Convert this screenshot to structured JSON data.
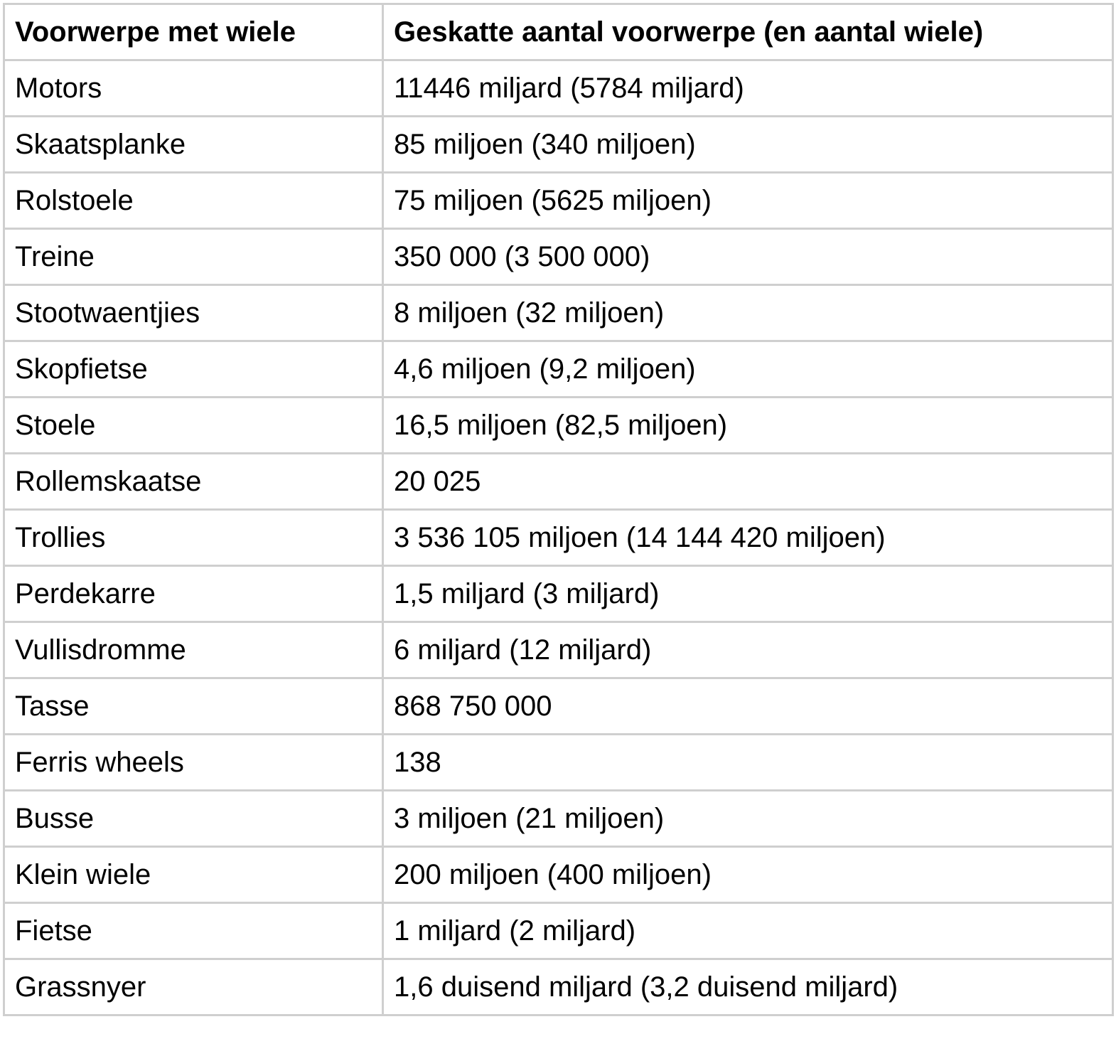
{
  "table": {
    "headers": [
      "Voorwerpe met wiele",
      "Geskatte aantal voorwerpe (en aantal wiele)"
    ],
    "rows": [
      [
        "Motors",
        "11446 miljard (5784 miljard)"
      ],
      [
        "Skaatsplanke",
        "85 miljoen (340 miljoen)"
      ],
      [
        "Rolstoele",
        "75 miljoen (5625 miljoen)"
      ],
      [
        "Treine",
        "350 000 (3 500 000)"
      ],
      [
        "Stootwaentjies",
        "8 miljoen (32 miljoen)"
      ],
      [
        "Skopfietse",
        "4,6 miljoen (9,2 miljoen)"
      ],
      [
        "Stoele",
        "16,5 miljoen (82,5 miljoen)"
      ],
      [
        "Rollemskaatse",
        "20 025"
      ],
      [
        "Trollies",
        "3 536 105 miljoen (14 144 420 miljoen)"
      ],
      [
        "Perdekarre",
        "1,5 miljard (3 miljard)"
      ],
      [
        "Vullisdromme",
        "6 miljard (12 miljard)"
      ],
      [
        "Tasse",
        "868 750 000"
      ],
      [
        "Ferris wheels",
        "138"
      ],
      [
        "Busse",
        "3 miljoen (21 miljoen)"
      ],
      [
        "Klein wiele",
        "200 miljoen (400 miljoen)"
      ],
      [
        "Fietse",
        "1 miljard (2 miljard)"
      ],
      [
        "Grassnyer",
        "1,6 duisend miljard (3,2 duisend miljard)"
      ]
    ]
  }
}
